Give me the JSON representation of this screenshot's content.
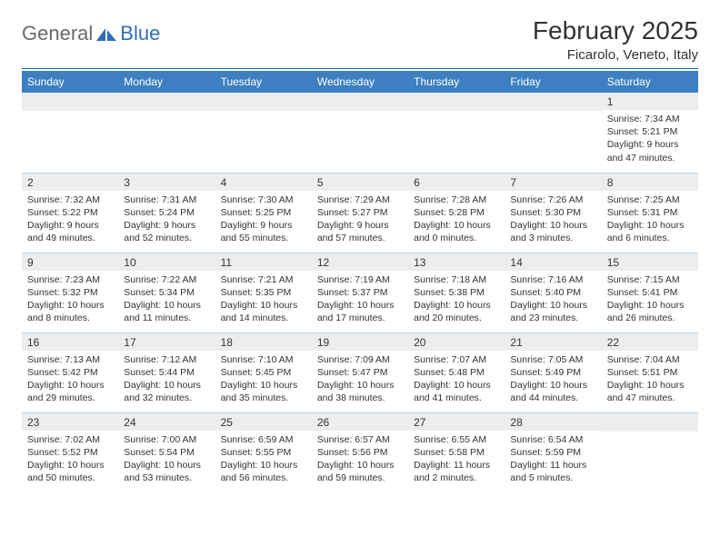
{
  "logo": {
    "general": "General",
    "blue": "Blue"
  },
  "title": "February 2025",
  "location": "Ficarolo, Veneto, Italy",
  "colors": {
    "header_bg": "#3d7fc0",
    "header_text": "#ffffff",
    "daynum_bg": "#eceded",
    "divider": "#1e5a94",
    "cell_border": "#b8cde0",
    "text": "#333333",
    "logo_gray": "#6a6a6a",
    "logo_blue": "#2f6fb0"
  },
  "weekdays": [
    "Sunday",
    "Monday",
    "Tuesday",
    "Wednesday",
    "Thursday",
    "Friday",
    "Saturday"
  ],
  "weeks": [
    [
      null,
      null,
      null,
      null,
      null,
      null,
      {
        "n": "1",
        "sr": "7:34 AM",
        "ss": "5:21 PM",
        "dl": "9 hours and 47 minutes."
      }
    ],
    [
      {
        "n": "2",
        "sr": "7:32 AM",
        "ss": "5:22 PM",
        "dl": "9 hours and 49 minutes."
      },
      {
        "n": "3",
        "sr": "7:31 AM",
        "ss": "5:24 PM",
        "dl": "9 hours and 52 minutes."
      },
      {
        "n": "4",
        "sr": "7:30 AM",
        "ss": "5:25 PM",
        "dl": "9 hours and 55 minutes."
      },
      {
        "n": "5",
        "sr": "7:29 AM",
        "ss": "5:27 PM",
        "dl": "9 hours and 57 minutes."
      },
      {
        "n": "6",
        "sr": "7:28 AM",
        "ss": "5:28 PM",
        "dl": "10 hours and 0 minutes."
      },
      {
        "n": "7",
        "sr": "7:26 AM",
        "ss": "5:30 PM",
        "dl": "10 hours and 3 minutes."
      },
      {
        "n": "8",
        "sr": "7:25 AM",
        "ss": "5:31 PM",
        "dl": "10 hours and 6 minutes."
      }
    ],
    [
      {
        "n": "9",
        "sr": "7:23 AM",
        "ss": "5:32 PM",
        "dl": "10 hours and 8 minutes."
      },
      {
        "n": "10",
        "sr": "7:22 AM",
        "ss": "5:34 PM",
        "dl": "10 hours and 11 minutes."
      },
      {
        "n": "11",
        "sr": "7:21 AM",
        "ss": "5:35 PM",
        "dl": "10 hours and 14 minutes."
      },
      {
        "n": "12",
        "sr": "7:19 AM",
        "ss": "5:37 PM",
        "dl": "10 hours and 17 minutes."
      },
      {
        "n": "13",
        "sr": "7:18 AM",
        "ss": "5:38 PM",
        "dl": "10 hours and 20 minutes."
      },
      {
        "n": "14",
        "sr": "7:16 AM",
        "ss": "5:40 PM",
        "dl": "10 hours and 23 minutes."
      },
      {
        "n": "15",
        "sr": "7:15 AM",
        "ss": "5:41 PM",
        "dl": "10 hours and 26 minutes."
      }
    ],
    [
      {
        "n": "16",
        "sr": "7:13 AM",
        "ss": "5:42 PM",
        "dl": "10 hours and 29 minutes."
      },
      {
        "n": "17",
        "sr": "7:12 AM",
        "ss": "5:44 PM",
        "dl": "10 hours and 32 minutes."
      },
      {
        "n": "18",
        "sr": "7:10 AM",
        "ss": "5:45 PM",
        "dl": "10 hours and 35 minutes."
      },
      {
        "n": "19",
        "sr": "7:09 AM",
        "ss": "5:47 PM",
        "dl": "10 hours and 38 minutes."
      },
      {
        "n": "20",
        "sr": "7:07 AM",
        "ss": "5:48 PM",
        "dl": "10 hours and 41 minutes."
      },
      {
        "n": "21",
        "sr": "7:05 AM",
        "ss": "5:49 PM",
        "dl": "10 hours and 44 minutes."
      },
      {
        "n": "22",
        "sr": "7:04 AM",
        "ss": "5:51 PM",
        "dl": "10 hours and 47 minutes."
      }
    ],
    [
      {
        "n": "23",
        "sr": "7:02 AM",
        "ss": "5:52 PM",
        "dl": "10 hours and 50 minutes."
      },
      {
        "n": "24",
        "sr": "7:00 AM",
        "ss": "5:54 PM",
        "dl": "10 hours and 53 minutes."
      },
      {
        "n": "25",
        "sr": "6:59 AM",
        "ss": "5:55 PM",
        "dl": "10 hours and 56 minutes."
      },
      {
        "n": "26",
        "sr": "6:57 AM",
        "ss": "5:56 PM",
        "dl": "10 hours and 59 minutes."
      },
      {
        "n": "27",
        "sr": "6:55 AM",
        "ss": "5:58 PM",
        "dl": "11 hours and 2 minutes."
      },
      {
        "n": "28",
        "sr": "6:54 AM",
        "ss": "5:59 PM",
        "dl": "11 hours and 5 minutes."
      },
      null
    ]
  ],
  "labels": {
    "sunrise": "Sunrise:",
    "sunset": "Sunset:",
    "daylight": "Daylight:"
  }
}
